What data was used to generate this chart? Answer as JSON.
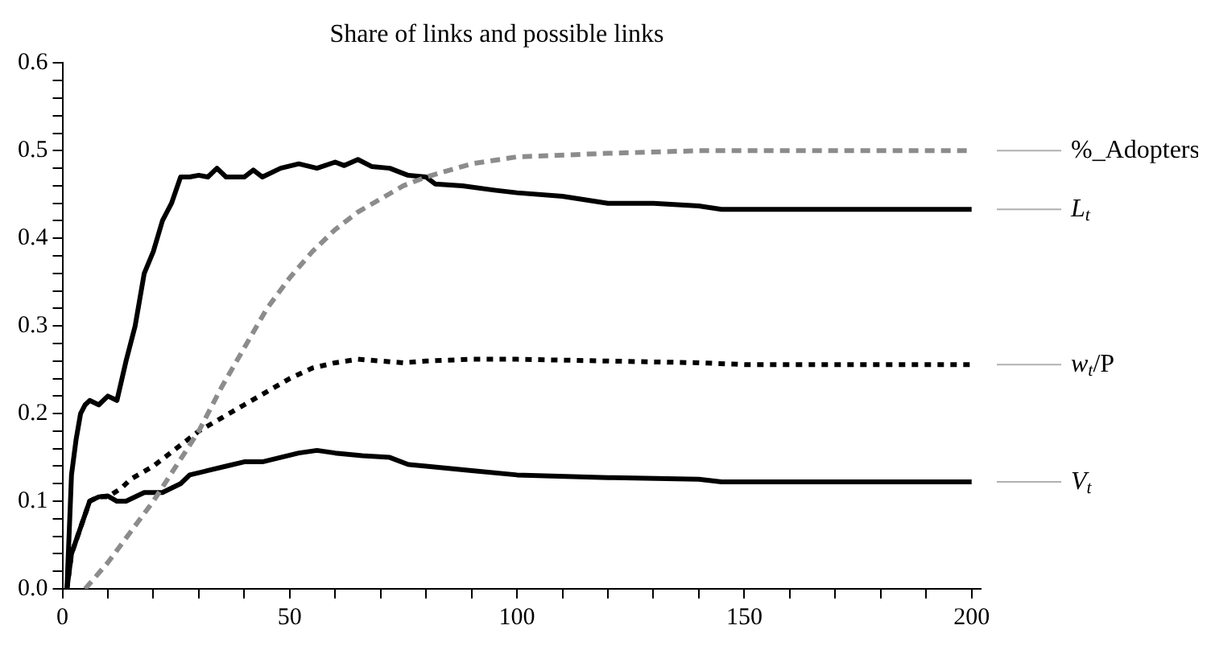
{
  "chart_data": {
    "type": "line",
    "title": "Share of links and possible links",
    "xlim": [
      0,
      202
    ],
    "ylim": [
      0,
      0.6
    ],
    "xticks": [
      0,
      {
        "value": 10,
        "label": null
      },
      {
        "value": 20,
        "label": null
      },
      {
        "value": 30,
        "label": null
      },
      {
        "value": 40,
        "label": null
      },
      50,
      {
        "value": 60,
        "label": null
      },
      {
        "value": 70,
        "label": null
      },
      {
        "value": 80,
        "label": null
      },
      {
        "value": 90,
        "label": null
      },
      100,
      {
        "value": 110,
        "label": null
      },
      {
        "value": 120,
        "label": null
      },
      {
        "value": 130,
        "label": null
      },
      {
        "value": 140,
        "label": null
      },
      150,
      {
        "value": 160,
        "label": null
      },
      {
        "value": 170,
        "label": null
      },
      {
        "value": 180,
        "label": null
      },
      {
        "value": 190,
        "label": null
      },
      200
    ],
    "yticks": [
      {
        "value": 0,
        "label": "0.0"
      },
      {
        "value": 0.02,
        "label": null
      },
      {
        "value": 0.04,
        "label": null
      },
      {
        "value": 0.06,
        "label": null
      },
      {
        "value": 0.08,
        "label": null
      },
      0.1,
      {
        "value": 0.12,
        "label": null
      },
      {
        "value": 0.14,
        "label": null
      },
      {
        "value": 0.16,
        "label": null
      },
      {
        "value": 0.18,
        "label": null
      },
      0.2,
      {
        "value": 0.22,
        "label": null
      },
      {
        "value": 0.24,
        "label": null
      },
      {
        "value": 0.26,
        "label": null
      },
      {
        "value": 0.28,
        "label": null
      },
      0.3,
      {
        "value": 0.32,
        "label": null
      },
      {
        "value": 0.34,
        "label": null
      },
      {
        "value": 0.36,
        "label": null
      },
      {
        "value": 0.38,
        "label": null
      },
      0.4,
      {
        "value": 0.42,
        "label": null
      },
      {
        "value": 0.44,
        "label": null
      },
      {
        "value": 0.46,
        "label": null
      },
      {
        "value": 0.48,
        "label": null
      },
      0.5,
      {
        "value": 0.52,
        "label": null
      },
      {
        "value": 0.54,
        "label": null
      },
      {
        "value": 0.56,
        "label": null
      },
      {
        "value": 0.58,
        "label": null
      },
      0.6
    ],
    "grid": false,
    "legend": false,
    "marker": "none",
    "series": [
      {
        "name": "%_Adopters",
        "color": "#8c8c8c",
        "line_style": "dashed",
        "x": [
          5,
          10,
          15,
          20,
          25,
          30,
          35,
          40,
          45,
          50,
          55,
          60,
          65,
          70,
          75,
          80,
          90,
          100,
          120,
          140,
          200
        ],
        "values": [
          0,
          0.03,
          0.065,
          0.1,
          0.14,
          0.18,
          0.23,
          0.275,
          0.32,
          0.355,
          0.385,
          0.41,
          0.43,
          0.445,
          0.46,
          0.47,
          0.485,
          0.493,
          0.497,
          0.5,
          0.5
        ]
      },
      {
        "name": "L$_{t}$",
        "color": "#000000",
        "line_style": "solid",
        "x": [
          1,
          2,
          3,
          4,
          5,
          6,
          8,
          10,
          12,
          14,
          16,
          18,
          20,
          22,
          24,
          26,
          28,
          30,
          32,
          34,
          36,
          40,
          42,
          44,
          48,
          52,
          56,
          60,
          62,
          65,
          68,
          72,
          76,
          80,
          82,
          88,
          95,
          100,
          110,
          120,
          130,
          140,
          145,
          200
        ],
        "values": [
          0,
          0.13,
          0.17,
          0.2,
          0.21,
          0.215,
          0.21,
          0.22,
          0.215,
          0.26,
          0.3,
          0.36,
          0.385,
          0.42,
          0.44,
          0.47,
          0.47,
          0.472,
          0.47,
          0.48,
          0.47,
          0.47,
          0.478,
          0.47,
          0.48,
          0.485,
          0.48,
          0.487,
          0.483,
          0.49,
          0.482,
          0.48,
          0.472,
          0.47,
          0.462,
          0.46,
          0.455,
          0.452,
          0.448,
          0.44,
          0.44,
          0.437,
          0.433,
          0.433
        ]
      },
      {
        "name": "w$_{t}$/P",
        "color": "#000000",
        "line_style": "dotted",
        "x": [
          1,
          2,
          4,
          6,
          8,
          10,
          13,
          15,
          20,
          25,
          30,
          35,
          40,
          45,
          50,
          55,
          60,
          65,
          70,
          75,
          80,
          90,
          100,
          120,
          140,
          150,
          200
        ],
        "values": [
          0,
          0.04,
          0.07,
          0.1,
          0.105,
          0.105,
          0.115,
          0.125,
          0.14,
          0.16,
          0.18,
          0.195,
          0.21,
          0.225,
          0.24,
          0.252,
          0.258,
          0.262,
          0.26,
          0.258,
          0.26,
          0.262,
          0.262,
          0.26,
          0.258,
          0.256,
          0.256
        ]
      },
      {
        "name": "V$_{t}$",
        "color": "#000000",
        "line_style": "solid",
        "x": [
          1,
          2,
          4,
          6,
          8,
          10,
          12,
          14,
          18,
          22,
          26,
          28,
          32,
          36,
          40,
          44,
          48,
          52,
          56,
          60,
          66,
          72,
          76,
          80,
          90,
          100,
          120,
          140,
          145,
          200
        ],
        "values": [
          0,
          0.04,
          0.07,
          0.1,
          0.105,
          0.106,
          0.1,
          0.1,
          0.11,
          0.11,
          0.12,
          0.13,
          0.135,
          0.14,
          0.145,
          0.145,
          0.15,
          0.155,
          0.158,
          0.155,
          0.152,
          0.15,
          0.142,
          0.14,
          0.135,
          0.13,
          0.127,
          0.125,
          0.122,
          0.122
        ]
      }
    ]
  }
}
